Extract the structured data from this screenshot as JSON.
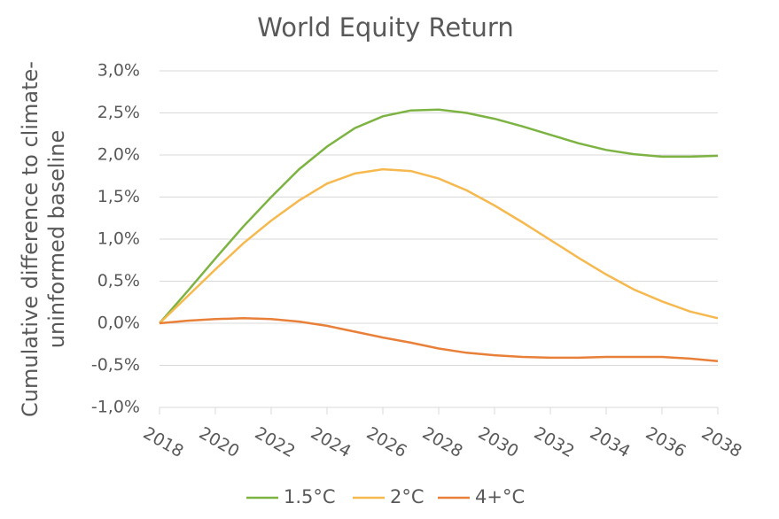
{
  "chart_data": {
    "type": "line",
    "title": "World Equity Return",
    "y_label": [
      "Cumulative difference to climate-",
      "uninformed baseline"
    ],
    "x": [
      2018,
      2019,
      2020,
      2021,
      2022,
      2023,
      2024,
      2025,
      2026,
      2027,
      2028,
      2029,
      2030,
      2031,
      2032,
      2033,
      2034,
      2035,
      2036,
      2037,
      2038
    ],
    "xlim": [
      2018,
      2038
    ],
    "xticks": [
      2018,
      2020,
      2022,
      2024,
      2026,
      2028,
      2030,
      2032,
      2034,
      2036,
      2038
    ],
    "ylim": [
      -1.0,
      3.0
    ],
    "yticks": [
      {
        "value": -1.0,
        "label": "-1,0%"
      },
      {
        "value": -0.5,
        "label": "-0,5%"
      },
      {
        "value": 0.0,
        "label": "0,0%"
      },
      {
        "value": 0.5,
        "label": "0,5%"
      },
      {
        "value": 1.0,
        "label": "1,0%"
      },
      {
        "value": 1.5,
        "label": "1,5%"
      },
      {
        "value": 2.0,
        "label": "2,0%"
      },
      {
        "value": 2.5,
        "label": "2,5%"
      },
      {
        "value": 3.0,
        "label": "3,0%"
      }
    ],
    "grid": true,
    "legend": "bottom",
    "series": [
      {
        "name": "1.5°C",
        "color": "#7cb342",
        "values": [
          0,
          0.38,
          0.77,
          1.15,
          1.5,
          1.83,
          2.1,
          2.32,
          2.46,
          2.53,
          2.54,
          2.5,
          2.43,
          2.34,
          2.24,
          2.14,
          2.06,
          2.01,
          1.98,
          1.98,
          1.99
        ]
      },
      {
        "name": "2°C",
        "color": "#f5b94f",
        "values": [
          0,
          0.32,
          0.64,
          0.95,
          1.22,
          1.46,
          1.66,
          1.78,
          1.83,
          1.81,
          1.72,
          1.58,
          1.4,
          1.2,
          0.99,
          0.78,
          0.58,
          0.4,
          0.26,
          0.14,
          0.06
        ]
      },
      {
        "name": "4+°C",
        "color": "#e8803a",
        "values": [
          0,
          0.03,
          0.05,
          0.06,
          0.05,
          0.02,
          -0.03,
          -0.1,
          -0.17,
          -0.23,
          -0.3,
          -0.35,
          -0.38,
          -0.4,
          -0.41,
          -0.41,
          -0.4,
          -0.4,
          -0.4,
          -0.42,
          -0.45
        ]
      }
    ]
  }
}
